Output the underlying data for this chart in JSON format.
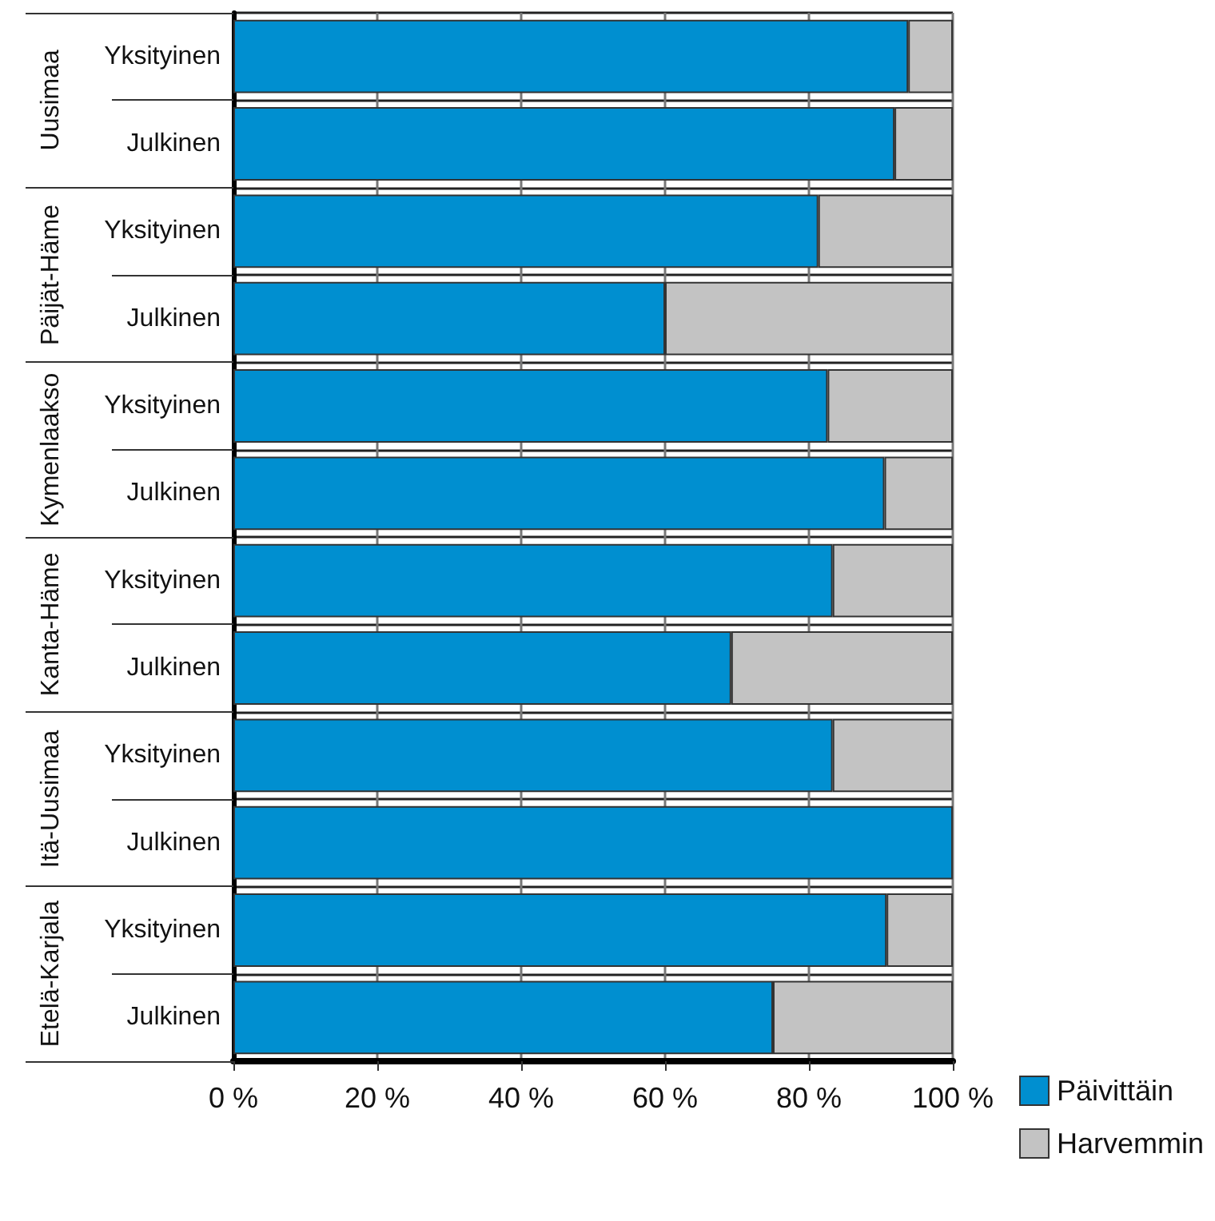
{
  "chart_data": {
    "type": "bar",
    "orientation": "horizontal",
    "stacked": true,
    "categories": [
      "Yksityinen",
      "Julkinen",
      "Yksityinen",
      "Julkinen",
      "Yksityinen",
      "Julkinen",
      "Yksityinen",
      "Julkinen",
      "Yksityinen",
      "Julkinen",
      "Yksityinen",
      "Julkinen"
    ],
    "annotations": [
      "Uusimaa",
      "Päijät-Häme",
      "Kymenlaakso",
      "Kanta-Häme",
      "Itä-Uusimaa",
      "Etelä-Karjala"
    ],
    "series": [
      {
        "name": "Päivittäin",
        "color": "#008fd0",
        "values": [
          93.8,
          91.9,
          81.3,
          60,
          82.6,
          90.5,
          83.3,
          69.2,
          83.3,
          100,
          90.8,
          75
        ]
      },
      {
        "name": "Harvemmin",
        "color": "#c3c3c3",
        "values": [
          6.2,
          8.1,
          18.7,
          40,
          17.4,
          9.5,
          16.7,
          30.8,
          16.7,
          0,
          9.2,
          25
        ]
      }
    ],
    "xlim": [
      0,
      100
    ],
    "xticks": [
      {
        "value": 0,
        "label": "0 %"
      },
      {
        "value": 20,
        "label": "20 %"
      },
      {
        "value": 40,
        "label": "40 %"
      },
      {
        "value": 60,
        "label": "60 %"
      },
      {
        "value": 80,
        "label": "80 %"
      },
      {
        "value": 100,
        "label": "100 %"
      }
    ],
    "grid": "x",
    "legend": "bottom right"
  }
}
